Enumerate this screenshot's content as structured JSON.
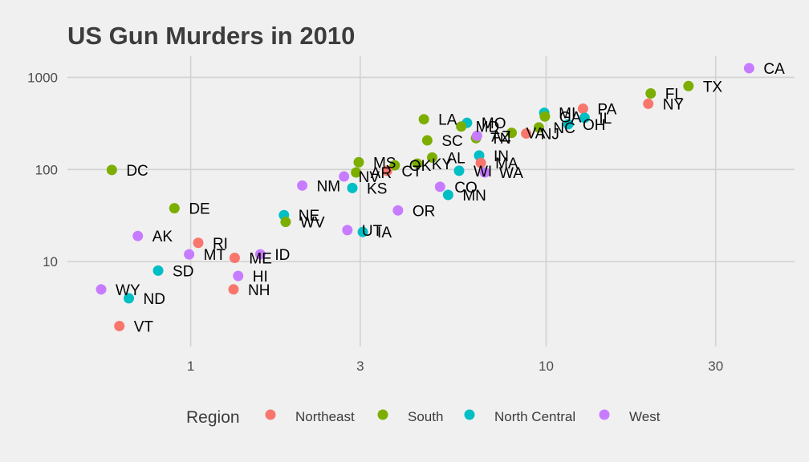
{
  "chart_data": {
    "type": "scatter",
    "title": "US Gun Murders in 2010",
    "xlabel": "",
    "ylabel": "",
    "x_scale": "log10",
    "y_scale": "log10",
    "xlim": [
      0.45,
      50
    ],
    "ylim": [
      1.2,
      1700
    ],
    "x_ticks": [
      1,
      3,
      10,
      30
    ],
    "x_tick_labels": [
      "1",
      "3",
      "10",
      "30"
    ],
    "y_ticks": [
      10,
      100,
      1000
    ],
    "y_tick_labels": [
      "10",
      "100",
      "1000"
    ],
    "grid": true,
    "legend": {
      "title": "Region",
      "position": "bottom",
      "entries": [
        {
          "name": "Northeast",
          "color": "#F8766D"
        },
        {
          "name": "South",
          "color": "#7CAE00"
        },
        {
          "name": "North Central",
          "color": "#00BFC4"
        },
        {
          "name": "West",
          "color": "#C77CFF"
        }
      ]
    },
    "points": [
      {
        "label": "CA",
        "x": 37.25,
        "y": 1257,
        "region": "West"
      },
      {
        "label": "TX",
        "x": 25.15,
        "y": 805,
        "region": "South"
      },
      {
        "label": "FL",
        "x": 19.69,
        "y": 669,
        "region": "South"
      },
      {
        "label": "NY",
        "x": 19.38,
        "y": 517,
        "region": "Northeast"
      },
      {
        "label": "PA",
        "x": 12.7,
        "y": 457,
        "region": "Northeast"
      },
      {
        "label": "MI",
        "x": 9.88,
        "y": 413,
        "region": "North Central"
      },
      {
        "label": "GA",
        "x": 9.92,
        "y": 376,
        "region": "South"
      },
      {
        "label": "IL",
        "x": 12.83,
        "y": 364,
        "region": "North Central"
      },
      {
        "label": "OH",
        "x": 11.54,
        "y": 310,
        "region": "North Central"
      },
      {
        "label": "NC",
        "x": 9.54,
        "y": 286,
        "region": "South"
      },
      {
        "label": "LA",
        "x": 4.53,
        "y": 351,
        "region": "South"
      },
      {
        "label": "MO",
        "x": 5.99,
        "y": 321,
        "region": "North Central"
      },
      {
        "label": "MD",
        "x": 5.77,
        "y": 293,
        "region": "South"
      },
      {
        "label": "TN",
        "x": 6.35,
        "y": 219,
        "region": "South"
      },
      {
        "label": "AZ",
        "x": 6.39,
        "y": 232,
        "region": "West"
      },
      {
        "label": "VA",
        "x": 8.0,
        "y": 250,
        "region": "South"
      },
      {
        "label": "NJ",
        "x": 8.79,
        "y": 246,
        "region": "Northeast"
      },
      {
        "label": "SC",
        "x": 4.63,
        "y": 207,
        "region": "South"
      },
      {
        "label": "AL",
        "x": 4.78,
        "y": 135,
        "region": "South"
      },
      {
        "label": "IN",
        "x": 6.48,
        "y": 142,
        "region": "North Central"
      },
      {
        "label": "MA",
        "x": 6.55,
        "y": 118,
        "region": "Northeast"
      },
      {
        "label": "WI",
        "x": 5.69,
        "y": 97,
        "region": "North Central"
      },
      {
        "label": "WA",
        "x": 6.72,
        "y": 93,
        "region": "West"
      },
      {
        "label": "KY",
        "x": 4.34,
        "y": 116,
        "region": "South"
      },
      {
        "label": "OK",
        "x": 3.75,
        "y": 111,
        "region": "South"
      },
      {
        "label": "CT",
        "x": 3.57,
        "y": 97,
        "region": "Northeast"
      },
      {
        "label": "MS",
        "x": 2.97,
        "y": 120,
        "region": "South"
      },
      {
        "label": "AR",
        "x": 2.92,
        "y": 93,
        "region": "South"
      },
      {
        "label": "CO",
        "x": 5.03,
        "y": 65,
        "region": "West"
      },
      {
        "label": "MN",
        "x": 5.3,
        "y": 53,
        "region": "North Central"
      },
      {
        "label": "NM",
        "x": 2.06,
        "y": 67,
        "region": "West"
      },
      {
        "label": "NV",
        "x": 2.7,
        "y": 84,
        "region": "West"
      },
      {
        "label": "KS",
        "x": 2.85,
        "y": 63,
        "region": "North Central"
      },
      {
        "label": "OR",
        "x": 3.83,
        "y": 36,
        "region": "West"
      },
      {
        "label": "UT",
        "x": 2.76,
        "y": 22,
        "region": "West"
      },
      {
        "label": "IA",
        "x": 3.05,
        "y": 21,
        "region": "North Central"
      },
      {
        "label": "NE",
        "x": 1.83,
        "y": 32,
        "region": "North Central"
      },
      {
        "label": "WV",
        "x": 1.85,
        "y": 27,
        "region": "South"
      },
      {
        "label": "DC",
        "x": 0.6,
        "y": 99,
        "region": "South"
      },
      {
        "label": "DE",
        "x": 0.9,
        "y": 38,
        "region": "South"
      },
      {
        "label": "AK",
        "x": 0.71,
        "y": 19,
        "region": "West"
      },
      {
        "label": "RI",
        "x": 1.05,
        "y": 16,
        "region": "Northeast"
      },
      {
        "label": "MT",
        "x": 0.99,
        "y": 12,
        "region": "West"
      },
      {
        "label": "ME",
        "x": 1.33,
        "y": 11,
        "region": "Northeast"
      },
      {
        "label": "ID",
        "x": 1.57,
        "y": 12,
        "region": "West"
      },
      {
        "label": "SD",
        "x": 0.81,
        "y": 8,
        "region": "North Central"
      },
      {
        "label": "HI",
        "x": 1.36,
        "y": 7,
        "region": "West"
      },
      {
        "label": "NH",
        "x": 1.32,
        "y": 5,
        "region": "Northeast"
      },
      {
        "label": "WY",
        "x": 0.56,
        "y": 5,
        "region": "West"
      },
      {
        "label": "ND",
        "x": 0.67,
        "y": 4,
        "region": "North Central"
      },
      {
        "label": "VT",
        "x": 0.63,
        "y": 2,
        "region": "Northeast"
      }
    ]
  }
}
